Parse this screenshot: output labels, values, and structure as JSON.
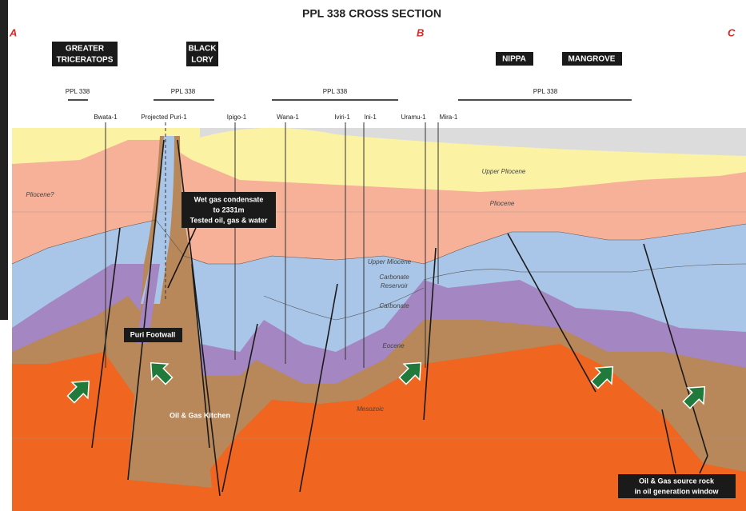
{
  "title": "PPL 338 CROSS SECTION",
  "section_markers": [
    "A",
    "B",
    "C"
  ],
  "fields": [
    {
      "lines": [
        "GREATER",
        "TRICERATOPS"
      ]
    },
    {
      "lines": [
        "BLACK",
        "LORY"
      ]
    },
    {
      "lines": [
        "NIPPA"
      ]
    },
    {
      "lines": [
        "MANGROVE"
      ]
    }
  ],
  "licences": [
    "PPL 338",
    "PPL 338",
    "PPL 338",
    "PPL 338"
  ],
  "wells": [
    "Bwata-1",
    "Projected Puri-1",
    "Ipigo-1",
    "Wana-1",
    "Iviri-1",
    "Ini-1",
    "Uramu-1",
    "Mira-1"
  ],
  "layers": [
    "Upper Pliocene",
    "Pliocene?",
    "Pliocene",
    "Upper Miocene",
    "Carbonate",
    "Reservoir",
    "Carbonate",
    "Eocene",
    "Mesozoic"
  ],
  "callouts": [
    {
      "lines": [
        "Wet gas condensate",
        "to 2331m",
        "Tested oil, gas & water"
      ]
    },
    {
      "lines": [
        "Puri Footwall"
      ]
    },
    {
      "lines": [
        "Oil & Gas Kitchen"
      ]
    },
    {
      "lines": [
        "Oil & Gas source rock",
        "in oil generation window"
      ]
    }
  ]
}
